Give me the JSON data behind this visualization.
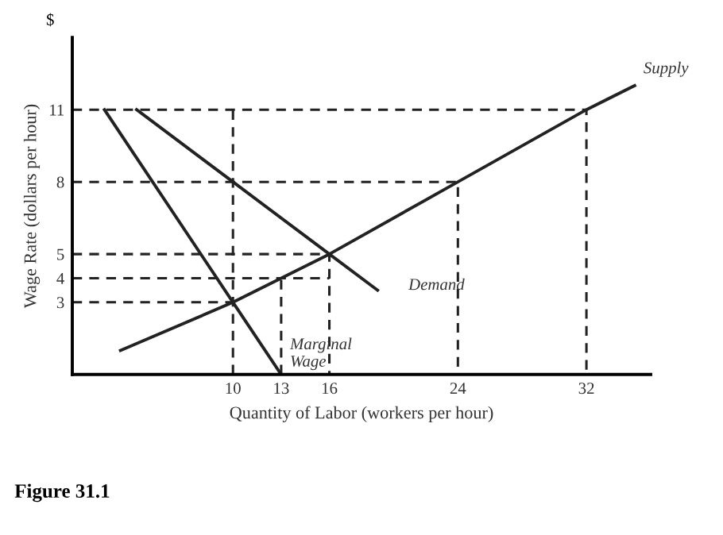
{
  "chart_data": {
    "type": "line",
    "xlabel": "Quantity of Labor (workers per hour)",
    "ylabel": "Wage Rate (dollars per hour)",
    "annotations": [
      "$",
      "Figure 31.1"
    ],
    "xlim": [
      0,
      36
    ],
    "ylim": [
      0,
      14
    ],
    "xticks": [
      10,
      13,
      16,
      24,
      32
    ],
    "yticks": [
      3,
      4,
      5,
      8,
      11
    ],
    "grid": false,
    "legend": false,
    "marker": "none",
    "series": [
      {
        "name": "Supply",
        "color": "#222222",
        "x": [
          3,
          10,
          16,
          24,
          32,
          35
        ],
        "values": [
          1,
          3,
          5,
          8,
          11,
          12
        ],
        "line_style": "solid"
      },
      {
        "name": "Demand",
        "color": "#222222",
        "x": [
          4,
          10,
          16,
          19
        ],
        "values": [
          11,
          8,
          5,
          3.5
        ],
        "line_style": "solid"
      },
      {
        "name": "Marginal\nWage",
        "color": "#222222",
        "x": [
          2,
          10,
          13
        ],
        "values": [
          11,
          3,
          0
        ],
        "line_style": "solid"
      },
      {
        "color": "#222222",
        "x": [
          0,
          32,
          32
        ],
        "values": [
          11,
          11,
          0
        ],
        "line_style": "dashed"
      },
      {
        "color": "#222222",
        "x": [
          0,
          24,
          24
        ],
        "values": [
          8,
          8,
          0
        ],
        "line_style": "dashed"
      },
      {
        "color": "#222222",
        "x": [
          0,
          16,
          16
        ],
        "values": [
          5,
          5,
          0
        ],
        "line_style": "dashed"
      },
      {
        "color": "#222222",
        "x": [
          0,
          16
        ],
        "values": [
          4,
          4
        ],
        "line_style": "dashed"
      },
      {
        "color": "#222222",
        "x": [
          0,
          10
        ],
        "values": [
          3,
          3
        ],
        "line_style": "dashed"
      },
      {
        "color": "#222222",
        "x": [
          10,
          10
        ],
        "values": [
          0,
          11
        ],
        "line_style": "dashed"
      },
      {
        "color": "#222222",
        "x": [
          13,
          13
        ],
        "values": [
          0,
          4
        ],
        "line_style": "dashed"
      }
    ]
  }
}
